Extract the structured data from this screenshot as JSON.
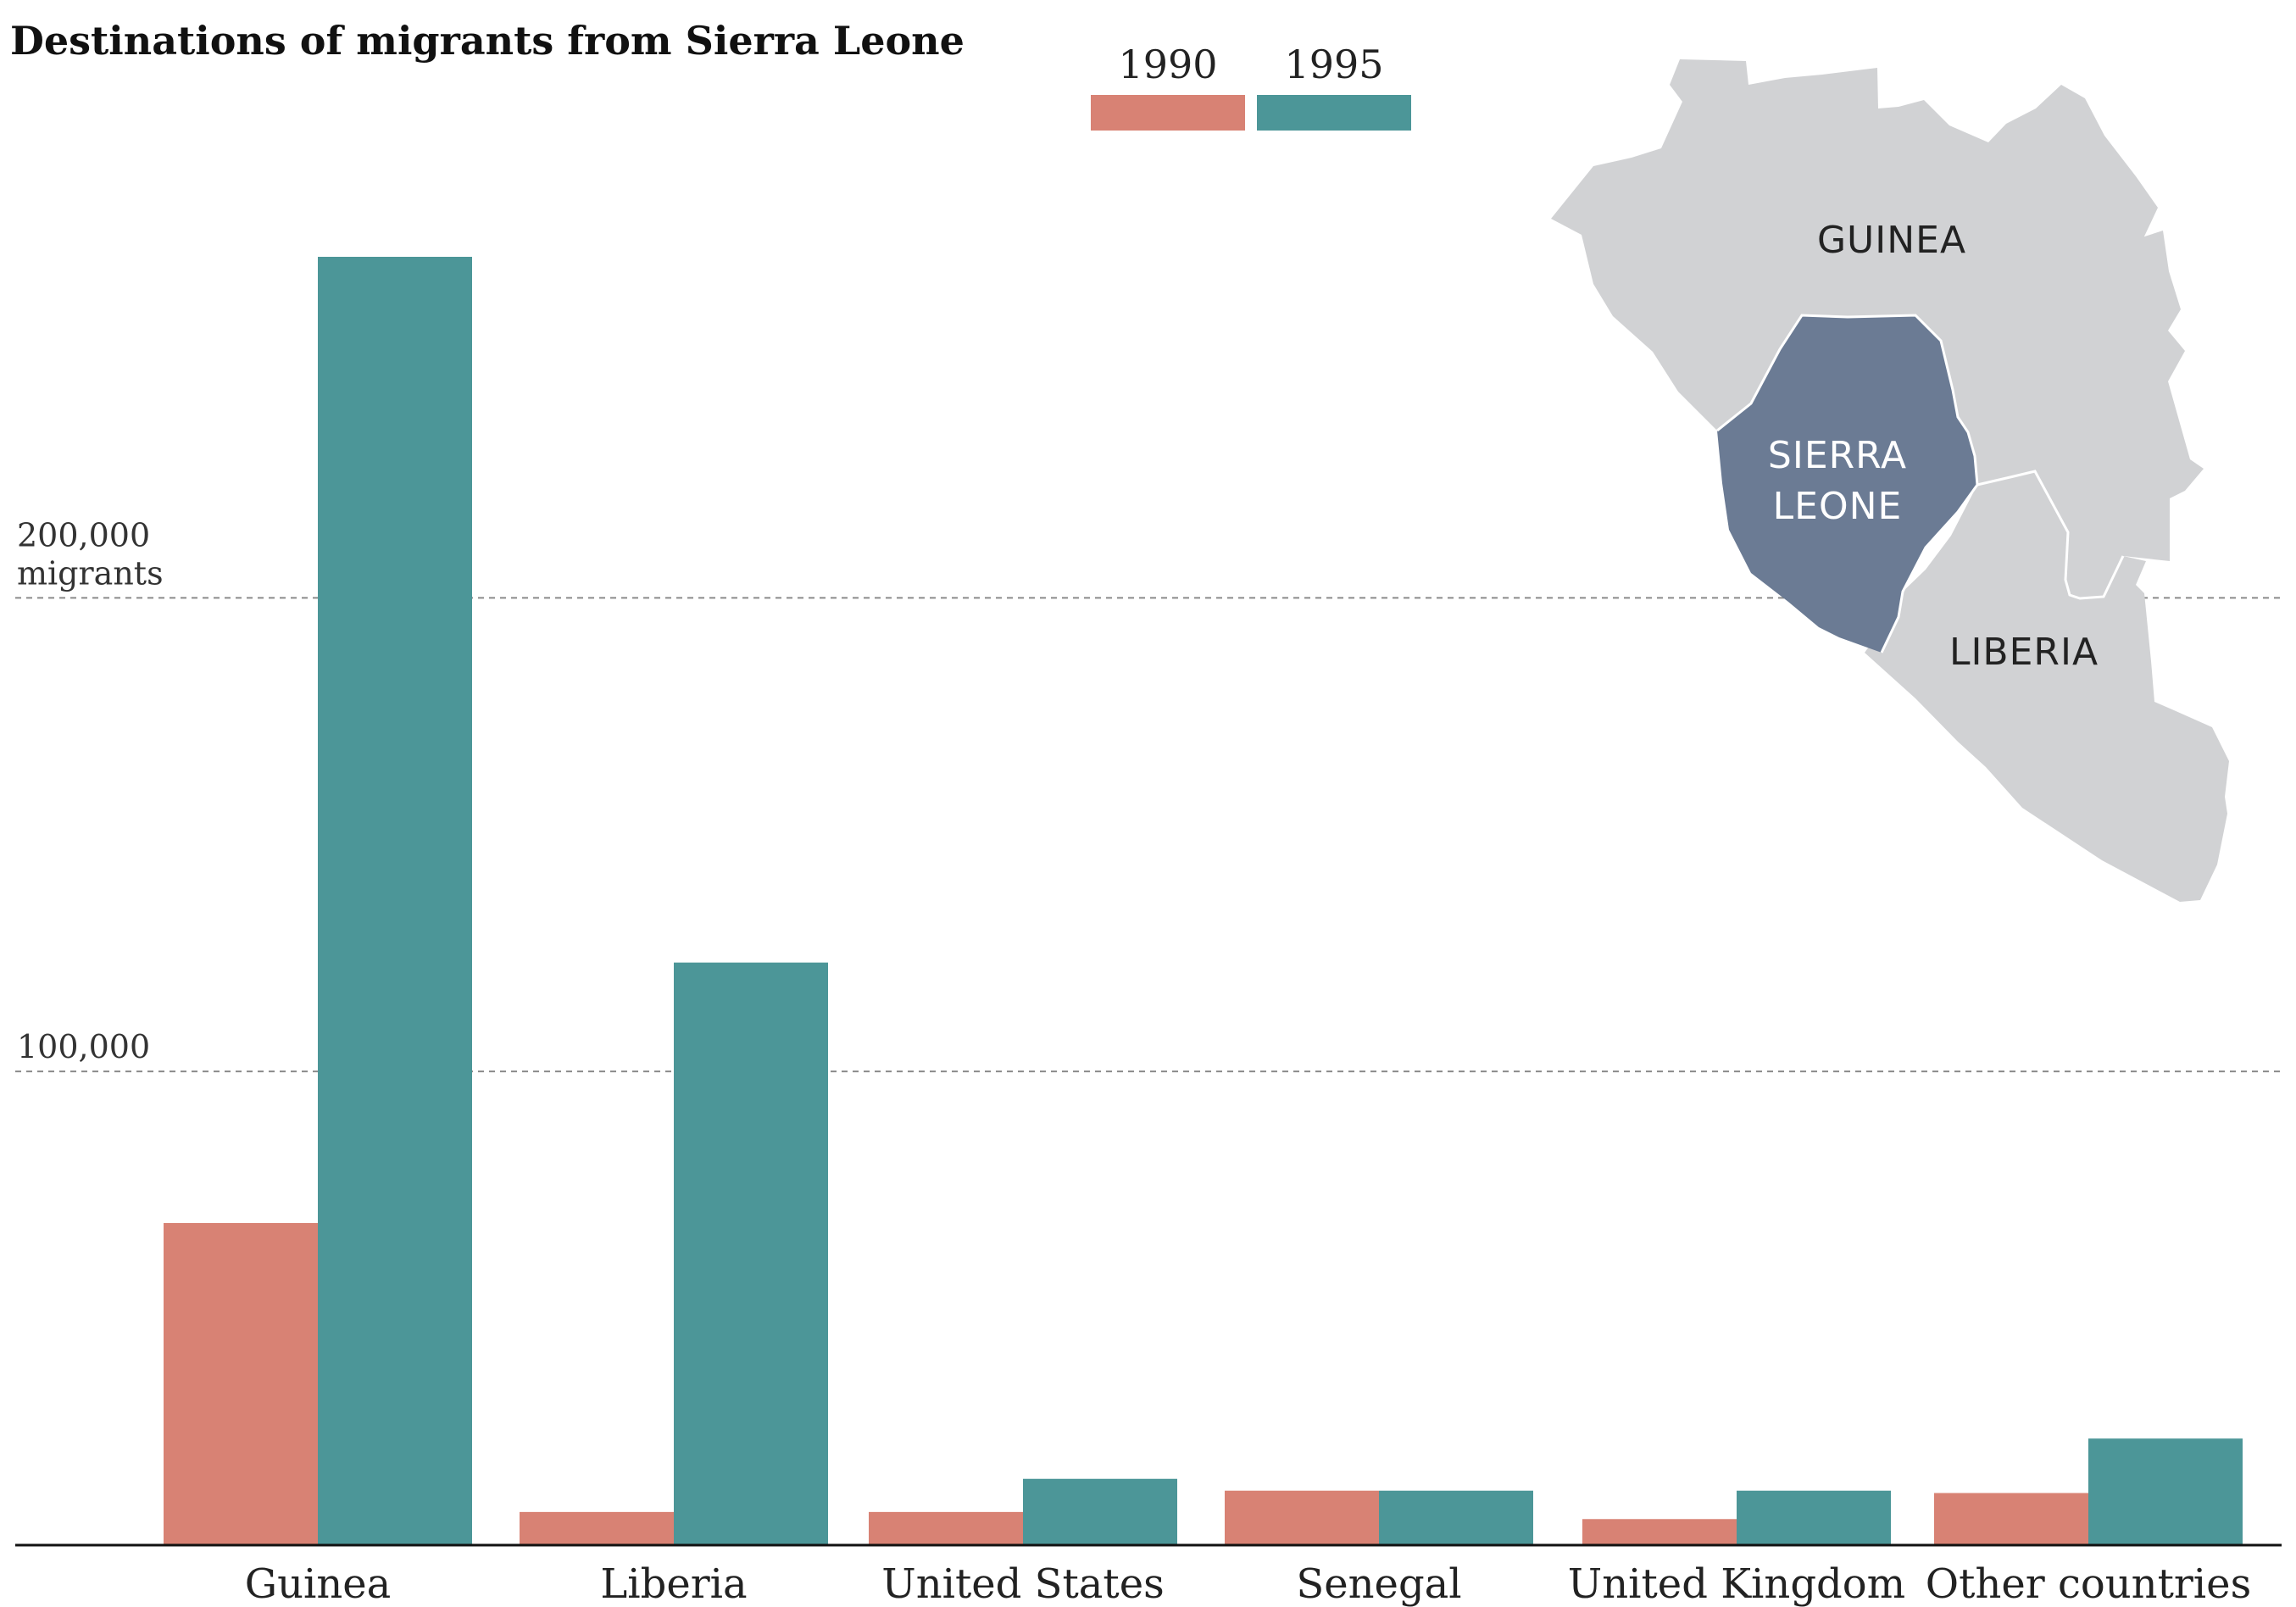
{
  "chart_data": {
    "type": "bar",
    "title": "Destinations of migrants from Sierra Leone",
    "categories": [
      "Guinea",
      "Liberia",
      "United States",
      "Senegal",
      "United Kingdom",
      "Other countries"
    ],
    "series": [
      {
        "name": "1990",
        "color": "#d88274",
        "values": [
          68000,
          7000,
          7000,
          11500,
          5500,
          11000
        ]
      },
      {
        "name": "1995",
        "color": "#4c9698",
        "values": [
          272000,
          123000,
          14000,
          11500,
          11500,
          22500
        ]
      }
    ],
    "ylim": [
      0,
      272000
    ],
    "yticks": [
      {
        "value": 100000,
        "label": "100,000",
        "unit": ""
      },
      {
        "value": 200000,
        "label": "200,000",
        "unit": "migrants"
      }
    ],
    "grid": true,
    "legend": "top-center"
  },
  "map": {
    "labels": {
      "guinea": "GUINEA",
      "sierra_leone_line1": "SIERRA",
      "sierra_leone_line2": "LEONE",
      "liberia": "LIBERIA"
    },
    "colors": {
      "neighbor": "#d1d2d4",
      "highlight": "#6b7b94"
    }
  }
}
